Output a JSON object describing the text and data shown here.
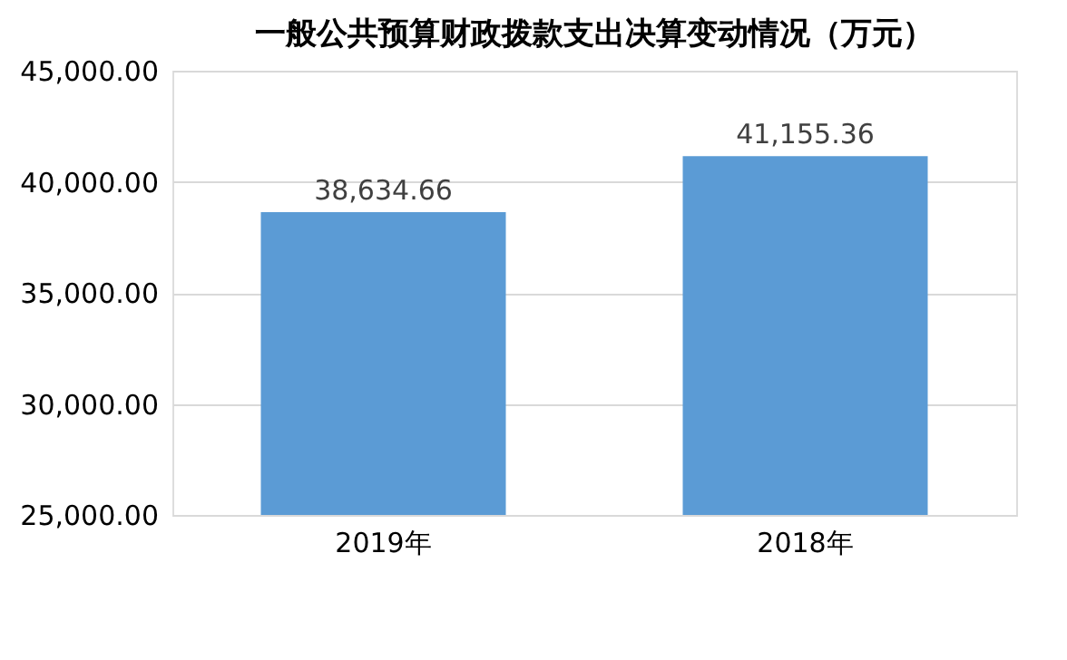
{
  "chart_data": {
    "type": "bar",
    "title": "一般公共预算财政拨款支出决算变动情况（万元）",
    "categories": [
      "2019年",
      "2018年"
    ],
    "values": [
      38634.66,
      41155.36
    ],
    "value_labels": [
      "38,634.66",
      "41,155.36"
    ],
    "color": "#5b9bd5",
    "ylim": [
      25000,
      45000
    ],
    "yticks": [
      {
        "value": 25000,
        "label": "25,000.00"
      },
      {
        "value": 30000,
        "label": "30,000.00"
      },
      {
        "value": 35000,
        "label": "35,000.00"
      },
      {
        "value": 40000,
        "label": "40,000.00"
      },
      {
        "value": 45000,
        "label": "45,000.00"
      }
    ],
    "grid": "y"
  }
}
